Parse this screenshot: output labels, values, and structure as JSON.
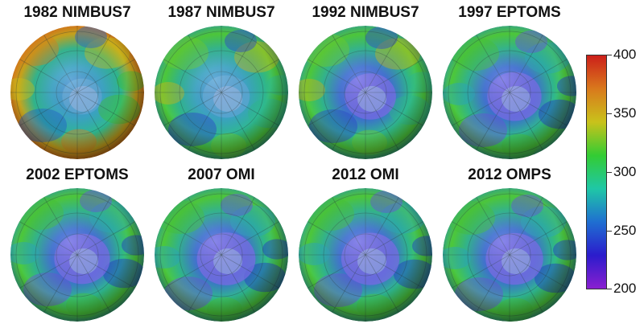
{
  "panels": [
    {
      "title": "1982 NIMBUS7",
      "depletion": 0.15
    },
    {
      "title": "1987 NIMBUS7",
      "depletion": 0.4
    },
    {
      "title": "1992 NIMBUS7",
      "depletion": 0.55
    },
    {
      "title": "1997 EPTOMS",
      "depletion": 0.65
    },
    {
      "title": "2002 EPTOMS",
      "depletion": 0.7
    },
    {
      "title": "2007 OMI",
      "depletion": 0.8
    },
    {
      "title": "2012 OMI",
      "depletion": 0.78
    },
    {
      "title": "2012 OMPS",
      "depletion": 0.76
    }
  ],
  "colorbar": {
    "min": 200,
    "max": 400,
    "ticks": [
      "400",
      "350",
      "300",
      "250",
      "200"
    ],
    "tick_values": [
      400,
      350,
      300,
      250,
      200
    ],
    "colors": [
      "#cc1f1a",
      "#d9791c",
      "#c9c21b",
      "#33cc33",
      "#1fc7a6",
      "#1f6fd1",
      "#2b1ccc",
      "#8a1fd0"
    ]
  }
}
